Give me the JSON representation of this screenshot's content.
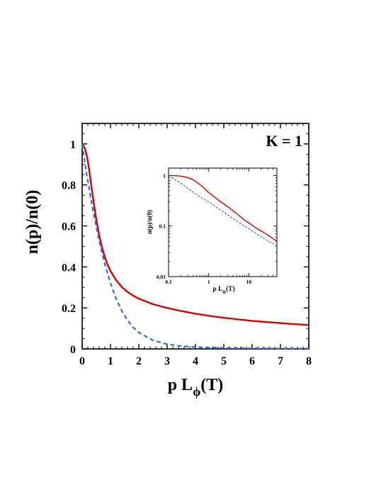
{
  "chart_data": [
    {
      "type": "line",
      "title": "",
      "annotation": "K = 1",
      "ylabel": "n(p)/n(0)",
      "xlabel_main": "p L",
      "xlabel_sub": "ϕ",
      "xlabel_tail": "(T)",
      "xlim": [
        0,
        8
      ],
      "ylim": [
        0,
        1.1
      ],
      "xticks": [
        0,
        1,
        2,
        3,
        4,
        5,
        6,
        7,
        8
      ],
      "xtick_labels": [
        "0",
        "1",
        "2",
        "3",
        "4",
        "5",
        "6",
        "7",
        "8"
      ],
      "yticks": [
        0,
        0.2,
        0.4,
        0.6,
        0.8,
        1
      ],
      "ytick_labels": [
        "0",
        "0.2",
        "0.4",
        "0.6",
        "0.8",
        "1"
      ],
      "grid": false,
      "series": [
        {
          "style": "solid",
          "color": "#d40000",
          "x": [
            0,
            0.05,
            0.1,
            0.15,
            0.2,
            0.25,
            0.3,
            0.35,
            0.4,
            0.5,
            0.6,
            0.7,
            0.8,
            0.9,
            1.0,
            1.2,
            1.4,
            1.6,
            1.8,
            2.0,
            2.5,
            3.0,
            3.5,
            4.0,
            4.5,
            5.0,
            5.5,
            6.0,
            6.5,
            7.0,
            7.5,
            8.0
          ],
          "y": [
            1.0,
            0.99,
            0.975,
            0.95,
            0.915,
            0.87,
            0.82,
            0.77,
            0.72,
            0.63,
            0.555,
            0.495,
            0.447,
            0.41,
            0.38,
            0.335,
            0.302,
            0.278,
            0.26,
            0.245,
            0.218,
            0.2,
            0.185,
            0.172,
            0.161,
            0.152,
            0.144,
            0.137,
            0.131,
            0.126,
            0.121,
            0.117
          ]
        },
        {
          "style": "dashed",
          "color": "#2f6de0",
          "x": [
            0,
            0.05,
            0.1,
            0.15,
            0.2,
            0.3,
            0.4,
            0.5,
            0.6,
            0.7,
            0.8,
            1.0,
            1.2,
            1.4,
            1.6,
            1.8,
            2.0,
            2.5,
            3.0,
            3.5,
            4.0,
            5.0,
            6.0,
            7.0,
            8.0
          ],
          "y": [
            1.0,
            0.95,
            0.905,
            0.86,
            0.82,
            0.74,
            0.665,
            0.595,
            0.53,
            0.47,
            0.415,
            0.32,
            0.245,
            0.185,
            0.14,
            0.105,
            0.08,
            0.042,
            0.023,
            0.014,
            0.009,
            0.005,
            0.003,
            0.002,
            0.002
          ]
        }
      ]
    },
    {
      "type": "line",
      "inset": true,
      "ylabel": "n(p)/n(0)",
      "xlabel_main": "p L",
      "xlabel_sub": "ϕ",
      "xlabel_tail": "(T)",
      "xscale": "log",
      "yscale": "log",
      "xlim": [
        0.1,
        50
      ],
      "ylim": [
        0.01,
        1.4
      ],
      "xticks": [
        0.1,
        1,
        10
      ],
      "xtick_labels": [
        "0.1",
        "1",
        "10"
      ],
      "yticks": [
        0.01,
        0.1,
        1
      ],
      "ytick_labels": [
        "0.01",
        "0.1",
        "1"
      ],
      "series": [
        {
          "style": "solid",
          "color": "#d40000",
          "x": [
            0.1,
            0.15,
            0.2,
            0.3,
            0.4,
            0.5,
            0.7,
            1,
            1.5,
            2,
            3,
            5,
            7,
            10,
            15,
            20,
            30,
            50
          ],
          "y": [
            1.0,
            0.99,
            0.97,
            0.91,
            0.83,
            0.74,
            0.6,
            0.46,
            0.36,
            0.3,
            0.24,
            0.175,
            0.14,
            0.115,
            0.092,
            0.08,
            0.066,
            0.05
          ]
        },
        {
          "style": "dashed",
          "color": "#2f6de0",
          "x": [
            0.1,
            0.2,
            0.3,
            0.5,
            0.7,
            1,
            2,
            3,
            5,
            7,
            10,
            20,
            30,
            50
          ],
          "y": [
            1.0,
            0.7,
            0.56,
            0.42,
            0.35,
            0.3,
            0.205,
            0.165,
            0.125,
            0.105,
            0.088,
            0.062,
            0.051,
            0.041
          ]
        }
      ]
    }
  ]
}
